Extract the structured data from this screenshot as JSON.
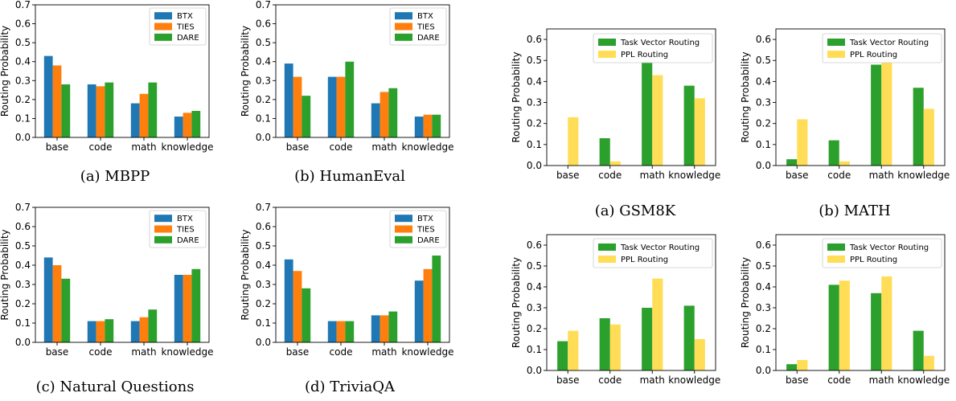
{
  "colors": {
    "BTX": "#1f77b4",
    "TIES": "#ff7f0e",
    "DARE": "#2ca02c",
    "Task Vector Routing": "#2ca02c",
    "PPL Routing": "#ffdd57"
  },
  "chart_data": [
    {
      "type": "bar",
      "caption": "(a) MBPP",
      "ylabel": "Routing Probability",
      "categories": [
        "base",
        "code",
        "math",
        "knowledge"
      ],
      "ylim": [
        0,
        0.7
      ],
      "yticks": [
        "0.0",
        "0.1",
        "0.2",
        "0.3",
        "0.4",
        "0.5",
        "0.6",
        "0.7"
      ],
      "legend_position": "upper right",
      "series": [
        {
          "name": "BTX",
          "values": [
            0.43,
            0.28,
            0.18,
            0.11
          ]
        },
        {
          "name": "TIES",
          "values": [
            0.38,
            0.27,
            0.23,
            0.13
          ]
        },
        {
          "name": "DARE",
          "values": [
            0.28,
            0.29,
            0.29,
            0.14
          ]
        }
      ]
    },
    {
      "type": "bar",
      "caption": "(b) HumanEval",
      "ylabel": "Routing Probability",
      "categories": [
        "base",
        "code",
        "math",
        "knowledge"
      ],
      "ylim": [
        0,
        0.7
      ],
      "yticks": [
        "0.0",
        "0.1",
        "0.2",
        "0.3",
        "0.4",
        "0.5",
        "0.6",
        "0.7"
      ],
      "legend_position": "upper right",
      "series": [
        {
          "name": "BTX",
          "values": [
            0.39,
            0.32,
            0.18,
            0.11
          ]
        },
        {
          "name": "TIES",
          "values": [
            0.32,
            0.32,
            0.24,
            0.12
          ]
        },
        {
          "name": "DARE",
          "values": [
            0.22,
            0.4,
            0.26,
            0.12
          ]
        }
      ]
    },
    {
      "type": "bar",
      "caption": "(c) Natural Questions",
      "ylabel": "Routing Probability",
      "categories": [
        "base",
        "code",
        "math",
        "knowledge"
      ],
      "ylim": [
        0,
        0.7
      ],
      "yticks": [
        "0.0",
        "0.1",
        "0.2",
        "0.3",
        "0.4",
        "0.5",
        "0.6",
        "0.7"
      ],
      "legend_position": "upper right",
      "series": [
        {
          "name": "BTX",
          "values": [
            0.44,
            0.11,
            0.11,
            0.35
          ]
        },
        {
          "name": "TIES",
          "values": [
            0.4,
            0.11,
            0.13,
            0.35
          ]
        },
        {
          "name": "DARE",
          "values": [
            0.33,
            0.12,
            0.17,
            0.38
          ]
        }
      ]
    },
    {
      "type": "bar",
      "caption": "(d) TriviaQA",
      "ylabel": "Routing Probability",
      "categories": [
        "base",
        "code",
        "math",
        "knowledge"
      ],
      "ylim": [
        0,
        0.7
      ],
      "yticks": [
        "0.0",
        "0.1",
        "0.2",
        "0.3",
        "0.4",
        "0.5",
        "0.6",
        "0.7"
      ],
      "legend_position": "upper right",
      "series": [
        {
          "name": "BTX",
          "values": [
            0.43,
            0.11,
            0.14,
            0.32
          ]
        },
        {
          "name": "TIES",
          "values": [
            0.37,
            0.11,
            0.14,
            0.38
          ]
        },
        {
          "name": "DARE",
          "values": [
            0.28,
            0.11,
            0.16,
            0.45
          ]
        }
      ]
    },
    {
      "type": "bar",
      "caption": "(a) GSM8K",
      "ylabel": "Routing Probability",
      "categories": [
        "base",
        "code",
        "math",
        "knowledge"
      ],
      "ylim": [
        0,
        0.65
      ],
      "yticks": [
        "0.0",
        "0.1",
        "0.2",
        "0.3",
        "0.4",
        "0.5",
        "0.6"
      ],
      "legend_position": "upper right",
      "series": [
        {
          "name": "Task Vector Routing",
          "values": [
            0.0,
            0.13,
            0.49,
            0.38
          ]
        },
        {
          "name": "PPL Routing",
          "values": [
            0.23,
            0.02,
            0.43,
            0.32
          ]
        }
      ]
    },
    {
      "type": "bar",
      "caption": "(b) MATH",
      "ylabel": "Routing Probability",
      "categories": [
        "base",
        "code",
        "math",
        "knowledge"
      ],
      "ylim": [
        0,
        0.65
      ],
      "yticks": [
        "0.0",
        "0.1",
        "0.2",
        "0.3",
        "0.4",
        "0.5",
        "0.6"
      ],
      "legend_position": "upper right",
      "series": [
        {
          "name": "Task Vector Routing",
          "values": [
            0.03,
            0.12,
            0.48,
            0.37
          ]
        },
        {
          "name": "PPL Routing",
          "values": [
            0.22,
            0.02,
            0.49,
            0.27
          ]
        }
      ]
    },
    {
      "type": "bar",
      "caption": "",
      "ylabel": "Routing Probability",
      "categories": [
        "base",
        "code",
        "math",
        "knowledge"
      ],
      "ylim": [
        0,
        0.65
      ],
      "yticks": [
        "0.0",
        "0.1",
        "0.2",
        "0.3",
        "0.4",
        "0.5",
        "0.6"
      ],
      "legend_position": "upper right",
      "series": [
        {
          "name": "Task Vector Routing",
          "values": [
            0.14,
            0.25,
            0.3,
            0.31
          ]
        },
        {
          "name": "PPL Routing",
          "values": [
            0.19,
            0.22,
            0.44,
            0.15
          ]
        }
      ]
    },
    {
      "type": "bar",
      "caption": "",
      "ylabel": "Routing Probability",
      "categories": [
        "base",
        "code",
        "math",
        "knowledge"
      ],
      "ylim": [
        0,
        0.65
      ],
      "yticks": [
        "0.0",
        "0.1",
        "0.2",
        "0.3",
        "0.4",
        "0.5",
        "0.6"
      ],
      "legend_position": "upper right",
      "series": [
        {
          "name": "Task Vector Routing",
          "values": [
            0.03,
            0.41,
            0.37,
            0.19
          ]
        },
        {
          "name": "PPL Routing",
          "values": [
            0.05,
            0.43,
            0.45,
            0.07
          ]
        }
      ]
    }
  ]
}
